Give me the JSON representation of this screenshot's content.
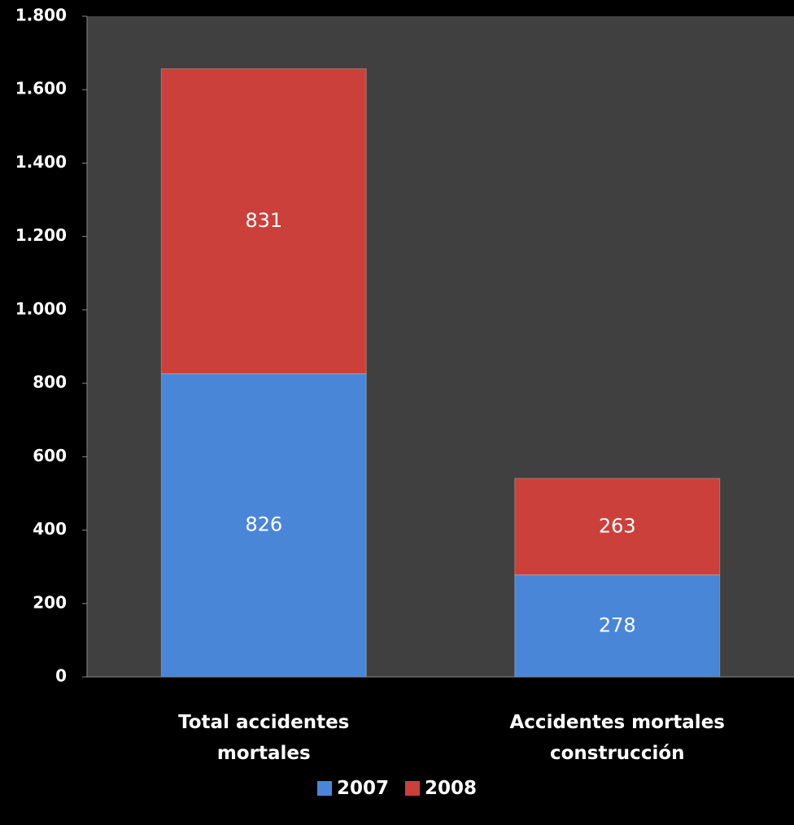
{
  "chart_data": {
    "type": "stacked_bar",
    "categories": [
      "Total accidentes mortales",
      "Accidentes mortales construcción"
    ],
    "series": [
      {
        "name": "2007",
        "color": "#4a86d8",
        "values": [
          826,
          278
        ]
      },
      {
        "name": "2008",
        "color": "#cc403b",
        "values": [
          831,
          263
        ]
      }
    ],
    "ylim": [
      0,
      1800
    ],
    "yticks": [
      0,
      200,
      400,
      600,
      800,
      {
        "value": 1000,
        "label": "1.000"
      },
      {
        "value": 1200,
        "label": "1.200"
      },
      {
        "value": 1400,
        "label": "1.400"
      },
      {
        "value": 1600,
        "label": "1.600"
      },
      {
        "value": 1800,
        "label": "1.800"
      }
    ],
    "grid": false,
    "legend": "bottom"
  }
}
